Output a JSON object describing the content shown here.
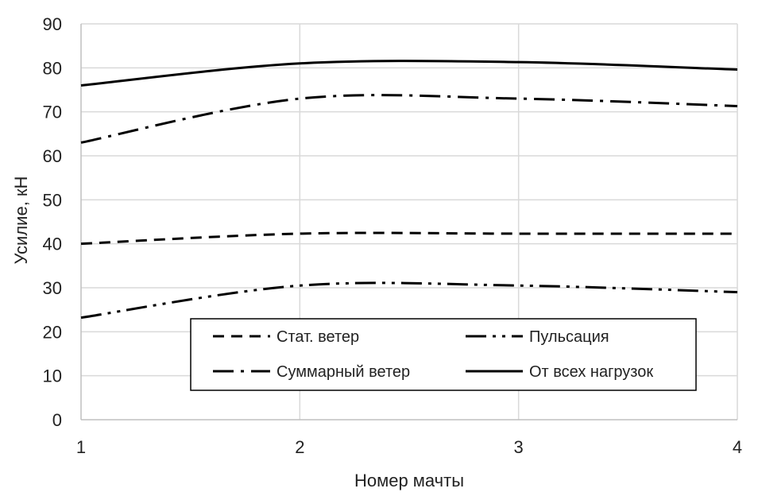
{
  "chart_data": {
    "type": "line",
    "xlabel": "Номер мачты",
    "ylabel": "Усилие, кН",
    "xlim": [
      1,
      4
    ],
    "ylim": [
      0,
      90
    ],
    "x_ticks": [
      "1",
      "2",
      "3",
      "4"
    ],
    "y_ticks": [
      "0",
      "10",
      "20",
      "30",
      "40",
      "50",
      "60",
      "70",
      "80",
      "90"
    ],
    "grid": true,
    "legend_position": "bottom-center",
    "x": [
      1,
      2,
      3,
      4
    ],
    "series": [
      {
        "name": "Стат. ветер",
        "style": "dashed",
        "values": [
          40,
          42.3,
          42.3,
          42.3
        ]
      },
      {
        "name": "Пульсация",
        "style": "long-dash-dot-dot",
        "values": [
          23.2,
          30.5,
          30.5,
          29.0
        ]
      },
      {
        "name": "Суммарный ветер",
        "style": "long-dash-dot",
        "values": [
          63,
          73,
          73,
          71.3
        ]
      },
      {
        "name": "От всех нагрузок",
        "style": "solid",
        "values": [
          76,
          81,
          81.3,
          79.6
        ]
      }
    ],
    "line_color": "#000000",
    "grid_color": "#d9d9d9"
  }
}
